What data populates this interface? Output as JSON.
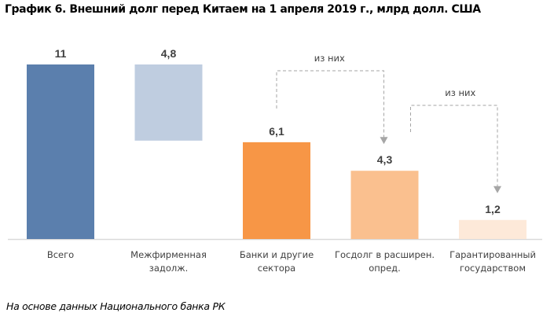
{
  "title": "График 6. Внешний долг перед Китаем на 1 апреля 2019 г., млрд долл. США",
  "source": "На основе данных Национального банка РК",
  "chart_data": {
    "type": "bar",
    "subtype": "waterfall",
    "title": "График 6. Внешний долг перед Китаем на 1 апреля 2019 г., млрд долл. США",
    "xlabel": "",
    "ylabel": "",
    "ylim": [
      0,
      11
    ],
    "grid": false,
    "legend": "none",
    "categories": [
      [
        "Всего"
      ],
      [
        "Межфирменная",
        "задолж."
      ],
      [
        "Банки и другие",
        "сектора"
      ],
      [
        "Госдолг в расширен.",
        "опред."
      ],
      [
        "Гарантированный",
        "государством"
      ]
    ],
    "bars": [
      {
        "category": "Всего",
        "value": 11,
        "label": "11",
        "base": 0,
        "color": "#5b7fad"
      },
      {
        "category": "Межфирменная задолж.",
        "value": 4.8,
        "label": "4,8",
        "base": 6.2,
        "color": "#bfcde0"
      },
      {
        "category": "Банки и другие сектора",
        "value": 6.1,
        "label": "6,1",
        "base": 0,
        "color": "#f79646"
      },
      {
        "category": "Госдолг в расширен. опред.",
        "value": 4.3,
        "label": "4,3",
        "base": 0,
        "color": "#fac08f"
      },
      {
        "category": "Гарантированный государством",
        "value": 1.2,
        "label": "1,2",
        "base": 0,
        "color": "#fde9d9"
      }
    ],
    "annotations": [
      {
        "text": "из них",
        "from": 2,
        "to": 3
      },
      {
        "text": "из них",
        "from": 3,
        "to": 4
      }
    ]
  }
}
